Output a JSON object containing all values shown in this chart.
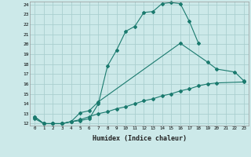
{
  "xlabel": "Humidex (Indice chaleur)",
  "bg_color": "#cce9e9",
  "grid_color": "#aacfcf",
  "line_color": "#1a7a6e",
  "xlim": [
    -0.5,
    23.5
  ],
  "ylim": [
    11.8,
    24.3
  ],
  "yticks": [
    12,
    13,
    14,
    15,
    16,
    17,
    18,
    19,
    20,
    21,
    22,
    23,
    24
  ],
  "xticks": [
    0,
    1,
    2,
    3,
    4,
    5,
    6,
    7,
    8,
    9,
    10,
    11,
    12,
    13,
    14,
    15,
    16,
    17,
    18,
    19,
    20,
    21,
    22,
    23
  ],
  "l1x": [
    0,
    1,
    2,
    3,
    4,
    5,
    6,
    7,
    8,
    9,
    10,
    11,
    12,
    13,
    14,
    15,
    16,
    17,
    18
  ],
  "l1y": [
    12.7,
    12.0,
    12.0,
    12.0,
    12.2,
    12.3,
    12.5,
    14.0,
    17.8,
    19.4,
    21.3,
    21.8,
    23.2,
    23.3,
    24.1,
    24.2,
    24.1,
    22.3,
    20.1
  ],
  "l2x": [
    0,
    1,
    2,
    3,
    4,
    5,
    6,
    7,
    16,
    19,
    20,
    22,
    23
  ],
  "l2y": [
    12.7,
    12.0,
    12.0,
    12.0,
    12.2,
    13.1,
    13.3,
    14.2,
    20.1,
    18.2,
    17.5,
    17.2,
    16.3
  ],
  "l3x": [
    0,
    1,
    2,
    3,
    4,
    5,
    6,
    7,
    8,
    9,
    10,
    11,
    12,
    13,
    14,
    15,
    16,
    17,
    18,
    19,
    20,
    23
  ],
  "l3y": [
    12.5,
    12.0,
    12.0,
    12.0,
    12.2,
    12.4,
    12.7,
    13.0,
    13.2,
    13.5,
    13.7,
    14.0,
    14.3,
    14.5,
    14.8,
    15.0,
    15.3,
    15.5,
    15.8,
    16.0,
    16.1,
    16.2
  ]
}
